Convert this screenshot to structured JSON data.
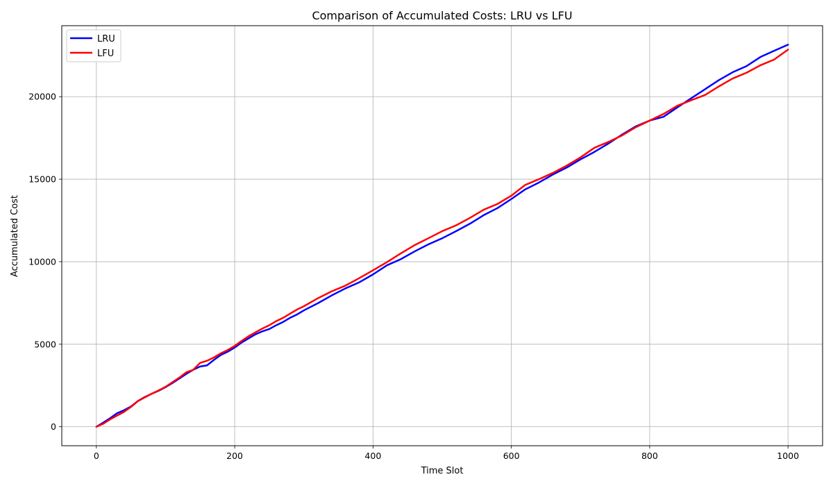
{
  "chart_data": {
    "type": "line",
    "title": "Comparison of Accumulated Costs: LRU vs LFU",
    "xlabel": "Time Slot",
    "ylabel": "Accumulated Cost",
    "xlim": [
      -50,
      1050
    ],
    "ylim": [
      -1150,
      24300
    ],
    "xticks": [
      0,
      200,
      400,
      600,
      800,
      1000
    ],
    "yticks": [
      0,
      5000,
      10000,
      15000,
      20000
    ],
    "grid": true,
    "legend_position": "top-left",
    "series": [
      {
        "name": "LRU",
        "color": "#0000ff",
        "x": [
          0,
          10,
          20,
          30,
          40,
          50,
          60,
          70,
          80,
          90,
          100,
          110,
          120,
          130,
          140,
          150,
          160,
          170,
          180,
          190,
          200,
          210,
          220,
          230,
          240,
          250,
          260,
          270,
          280,
          290,
          300,
          320,
          340,
          360,
          380,
          400,
          420,
          440,
          460,
          480,
          500,
          520,
          540,
          560,
          580,
          600,
          620,
          640,
          660,
          680,
          700,
          720,
          740,
          760,
          780,
          800,
          820,
          840,
          860,
          880,
          900,
          920,
          940,
          960,
          980,
          1000
        ],
        "values": [
          0,
          250,
          520,
          820,
          1000,
          1230,
          1560,
          1800,
          2000,
          2180,
          2400,
          2650,
          2920,
          3200,
          3450,
          3650,
          3720,
          4050,
          4350,
          4550,
          4800,
          5100,
          5350,
          5600,
          5780,
          5920,
          6150,
          6350,
          6600,
          6800,
          7050,
          7480,
          7950,
          8380,
          8750,
          9230,
          9780,
          10150,
          10620,
          11050,
          11420,
          11850,
          12300,
          12820,
          13250,
          13800,
          14380,
          14800,
          15280,
          15700,
          16200,
          16650,
          17150,
          17700,
          18200,
          18550,
          18780,
          19350,
          19900,
          20450,
          21000,
          21480,
          21850,
          22400,
          22780,
          23150
        ]
      },
      {
        "name": "LFU",
        "color": "#ff0000",
        "x": [
          0,
          10,
          20,
          30,
          40,
          50,
          60,
          70,
          80,
          90,
          100,
          110,
          120,
          130,
          140,
          150,
          160,
          170,
          180,
          190,
          200,
          210,
          220,
          230,
          240,
          250,
          260,
          270,
          280,
          290,
          300,
          320,
          340,
          360,
          380,
          400,
          420,
          440,
          460,
          480,
          500,
          520,
          540,
          560,
          580,
          600,
          620,
          640,
          660,
          680,
          700,
          720,
          740,
          760,
          780,
          800,
          820,
          840,
          860,
          880,
          900,
          920,
          940,
          960,
          980,
          1000
        ],
        "values": [
          0,
          180,
          450,
          680,
          900,
          1200,
          1550,
          1780,
          2000,
          2200,
          2420,
          2700,
          2980,
          3300,
          3450,
          3870,
          4000,
          4200,
          4450,
          4650,
          4900,
          5200,
          5480,
          5720,
          5950,
          6150,
          6400,
          6600,
          6850,
          7100,
          7300,
          7780,
          8200,
          8550,
          9000,
          9480,
          9970,
          10500,
          11000,
          11420,
          11850,
          12200,
          12650,
          13150,
          13500,
          14000,
          14650,
          15000,
          15380,
          15820,
          16320,
          16900,
          17250,
          17650,
          18150,
          18550,
          18950,
          19450,
          19780,
          20100,
          20620,
          21100,
          21450,
          21900,
          22250,
          22850
        ]
      }
    ]
  }
}
